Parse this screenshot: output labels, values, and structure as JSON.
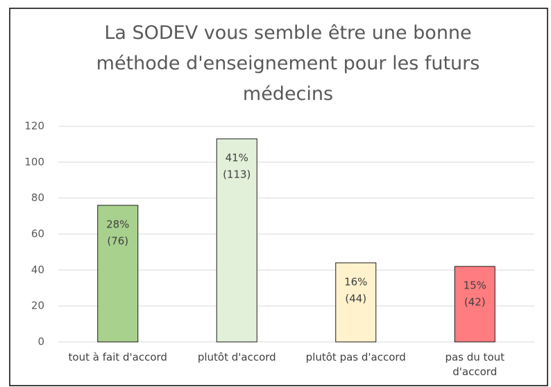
{
  "chart_data": {
    "type": "bar",
    "title": "La SODEV vous semble être une bonne méthode d'enseignement pour les futurs médecins",
    "categories": [
      "tout à fait d'accord",
      "plutôt d'accord",
      "plutôt pas d'accord",
      "pas du tout d'accord"
    ],
    "values": [
      76,
      113,
      44,
      42
    ],
    "value_labels": [
      [
        "28%",
        "(76)"
      ],
      [
        "41%",
        "(113)"
      ],
      [
        "16%",
        "(44)"
      ],
      [
        "15%",
        "(42)"
      ]
    ],
    "colors": [
      "#a9d18e",
      "#e2f0d9",
      "#fff2cc",
      "#ff7c80"
    ],
    "ylim": [
      0,
      120
    ],
    "yticks": [
      0,
      20,
      40,
      60,
      80,
      100,
      120
    ],
    "grid": true
  }
}
